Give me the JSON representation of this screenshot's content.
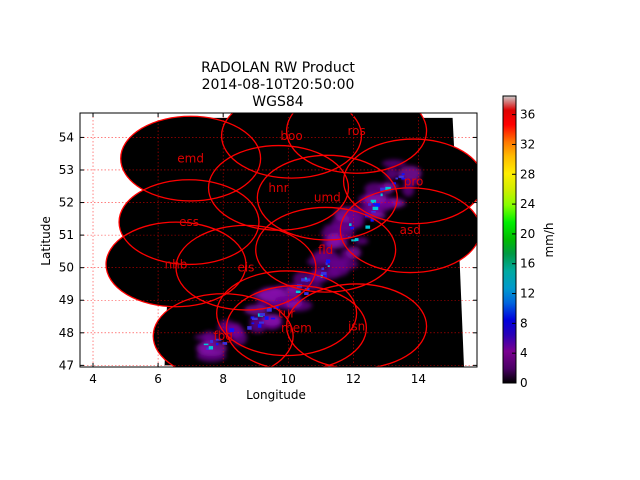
{
  "chart_data": {
    "type": "heatmap",
    "title_lines": [
      "RADOLAN RW Product",
      "2014-08-10T20:50:00",
      "WGS84"
    ],
    "xlabel": "Longitude",
    "ylabel": "Latitude",
    "xlim": [
      3.6,
      15.8
    ],
    "ylim": [
      46.95,
      54.75
    ],
    "xticks": [
      4,
      6,
      8,
      10,
      12,
      14
    ],
    "yticks": [
      47,
      48,
      49,
      50,
      51,
      52,
      53,
      54
    ],
    "grid": true,
    "grid_color": "#ff0000",
    "colorbar": {
      "label": "mm/h",
      "range": [
        0,
        38.5
      ],
      "ticks": [
        0,
        4,
        8,
        12,
        16,
        20,
        24,
        28,
        32,
        36
      ],
      "colormap": "nipy_spectral"
    },
    "composite_region_lonlat": [
      [
        6.2,
        47.0
      ],
      [
        15.4,
        46.95
      ],
      [
        15.25,
        50.6
      ],
      [
        15.05,
        54.6
      ],
      [
        6.5,
        54.6
      ]
    ],
    "radar_sites": [
      {
        "name": "emd",
        "lon": 7.0,
        "lat": 53.35
      },
      {
        "name": "boo",
        "lon": 10.1,
        "lat": 54.05
      },
      {
        "name": "ros",
        "lon": 12.1,
        "lat": 54.2
      },
      {
        "name": "pro",
        "lon": 13.85,
        "lat": 52.65
      },
      {
        "name": "hnr",
        "lon": 9.7,
        "lat": 52.45
      },
      {
        "name": "umd",
        "lon": 11.2,
        "lat": 52.15
      },
      {
        "name": "ess",
        "lon": 6.95,
        "lat": 51.4
      },
      {
        "name": "asd",
        "lon": 13.75,
        "lat": 51.15
      },
      {
        "name": "fld",
        "lon": 11.15,
        "lat": 50.55
      },
      {
        "name": "nhb",
        "lon": 6.55,
        "lat": 50.1
      },
      {
        "name": "eis",
        "lon": 8.7,
        "lat": 50.0
      },
      {
        "name": "tur",
        "lon": 9.95,
        "lat": 48.6
      },
      {
        "name": "fbg",
        "lon": 8.0,
        "lat": 47.9
      },
      {
        "name": "mem",
        "lon": 10.25,
        "lat": 48.15
      },
      {
        "name": "isn",
        "lon": 12.1,
        "lat": 48.2
      }
    ],
    "site_range_deg_lon": 2.15,
    "site_range_deg_lat": 1.3,
    "site_color": "#ff0000",
    "no_data_color": "#000000",
    "precip_band": {
      "orientation": "SW-NE squall line",
      "points_lonlat": [
        [
          7.5,
          47.5
        ],
        [
          8.6,
          48.2
        ],
        [
          9.6,
          48.8
        ],
        [
          10.4,
          49.4
        ],
        [
          11.2,
          50.1
        ],
        [
          11.8,
          50.8
        ],
        [
          12.3,
          51.6
        ],
        [
          12.9,
          52.3
        ],
        [
          13.6,
          53.0
        ]
      ],
      "peak_rate_mmh": 14
    }
  }
}
